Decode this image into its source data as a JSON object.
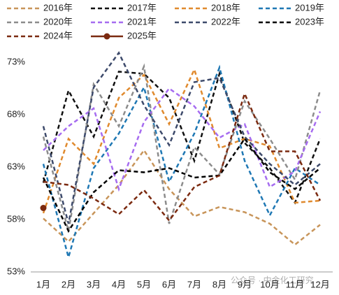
{
  "chart_data": {
    "type": "line",
    "categories": [
      "1月",
      "2月",
      "3月",
      "4月",
      "5月",
      "6月",
      "7月",
      "8月",
      "9月",
      "10月",
      "11月",
      "12月"
    ],
    "ylim": [
      53,
      73
    ],
    "yticks": [
      {
        "value": 53,
        "label": "53%"
      },
      {
        "value": 58,
        "label": "58%"
      },
      {
        "value": 63,
        "label": "63%"
      },
      {
        "value": 68,
        "label": "68%"
      },
      {
        "value": 73,
        "label": "73%"
      }
    ],
    "watermark": "公众号 · 中金化工研究",
    "series": [
      {
        "name": "2016年",
        "color": "#c8955a",
        "values": [
          58.1,
          55.9,
          58.6,
          61.3,
          64.6,
          60.9,
          58.3,
          59.2,
          58.7,
          57.6,
          55.6,
          57.5
        ]
      },
      {
        "name": "2017年",
        "color": "#111111",
        "values": [
          61.5,
          70.3,
          65.9,
          72.1,
          71.9,
          69.6,
          63.6,
          71.9,
          65.3,
          62.9,
          59.6,
          65.7
        ]
      },
      {
        "name": "2018年",
        "color": "#e08a2e",
        "values": [
          58.6,
          65.7,
          63.3,
          69.6,
          71.8,
          67.1,
          72.3,
          64.8,
          65.7,
          65.0,
          59.6,
          59.8
        ]
      },
      {
        "name": "2019年",
        "color": "#1f78b4",
        "values": [
          63.3,
          54.4,
          62.9,
          66.2,
          70.6,
          61.6,
          66.2,
          72.5,
          63.6,
          58.4,
          62.9,
          61.3
        ]
      },
      {
        "name": "2020年",
        "color": "#8c8c8c",
        "values": [
          65.9,
          56.9,
          70.9,
          66.9,
          72.6,
          57.6,
          64.9,
          62.3,
          69.3,
          65.7,
          61.8,
          70.3
        ]
      },
      {
        "name": "2021年",
        "color": "#a66cf0",
        "values": [
          64.6,
          66.9,
          68.6,
          60.9,
          67.3,
          70.5,
          68.8,
          65.8,
          67.1,
          61.1,
          62.6,
          68.3
        ]
      },
      {
        "name": "2022年",
        "color": "#3d4a6b",
        "values": [
          66.9,
          57.6,
          70.6,
          73.9,
          68.9,
          65.1,
          71.1,
          71.5,
          65.9,
          63.3,
          61.3,
          63.3
        ]
      },
      {
        "name": "2023年",
        "color": "#000000",
        "values": [
          62.0,
          56.9,
          60.6,
          62.7,
          62.5,
          62.9,
          62.0,
          62.2,
          65.7,
          62.5,
          60.9,
          62.9
        ]
      },
      {
        "name": "2024年",
        "color": "#7b2a10",
        "values": [
          61.6,
          61.3,
          60.0,
          58.5,
          60.8,
          57.9,
          61.1,
          62.2,
          70.0,
          64.5,
          64.5,
          59.8
        ]
      },
      {
        "name": "2025年",
        "color": "#7b2a10",
        "solid": true,
        "values": [
          59.1,
          null,
          null,
          null,
          null,
          null,
          null,
          null,
          null,
          null,
          null,
          null
        ]
      }
    ]
  }
}
